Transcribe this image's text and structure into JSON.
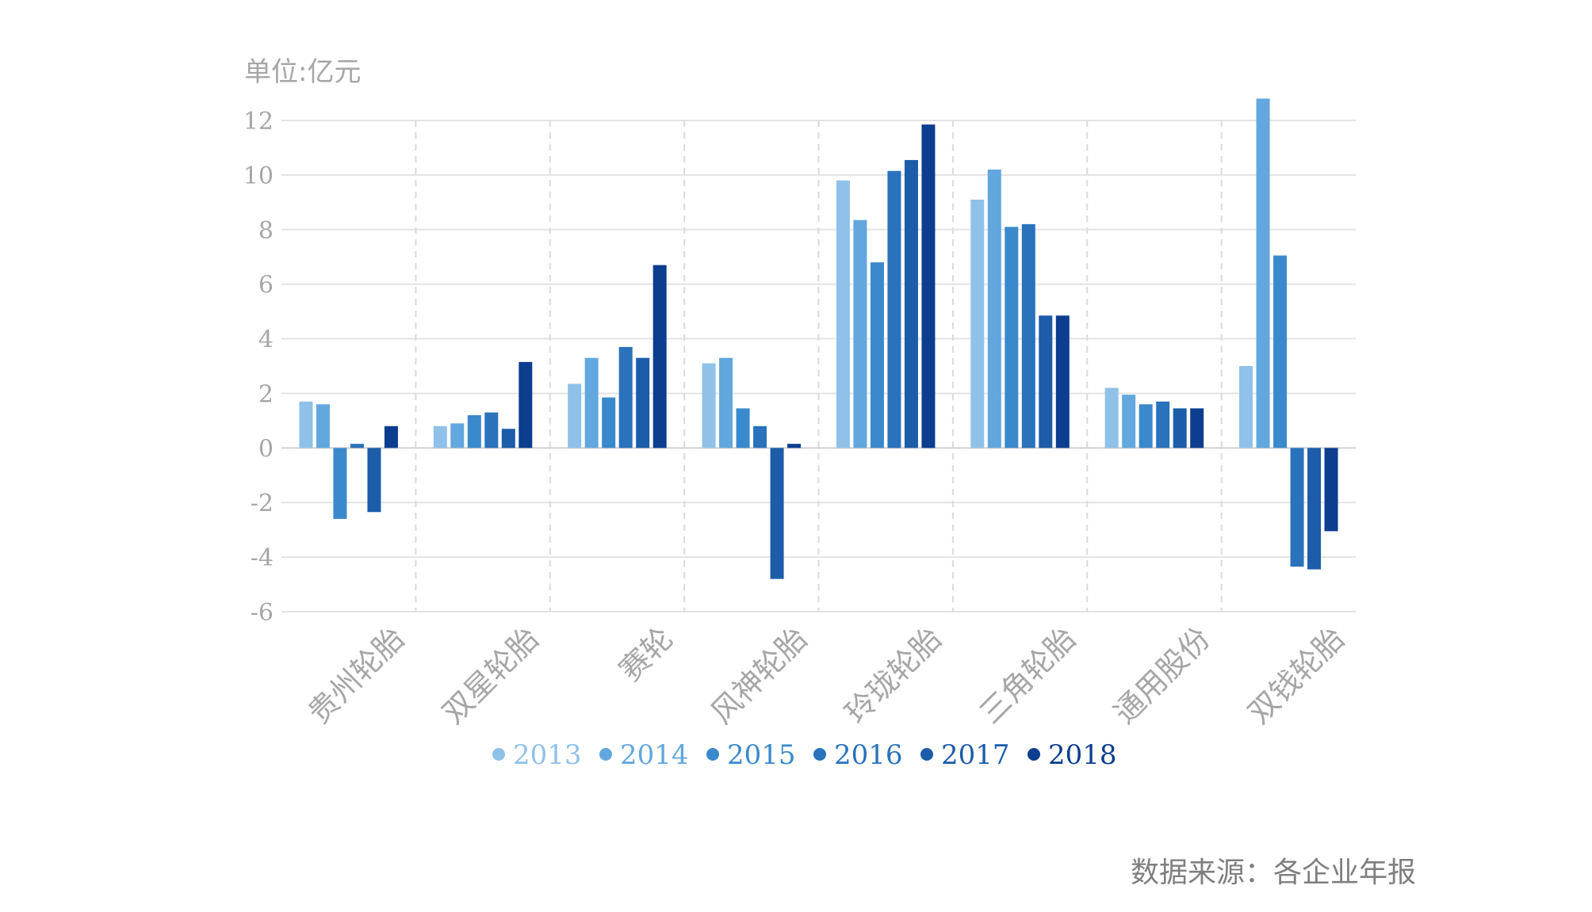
{
  "chart_data": {
    "type": "bar",
    "unit_label": "单位:亿元",
    "categories": [
      "贵州轮胎",
      "双星轮胎",
      "赛轮",
      "风神轮胎",
      "玲珑轮胎",
      "三角轮胎",
      "通用股份",
      "双钱轮胎"
    ],
    "series": [
      {
        "name": "2013",
        "color": "#8fc1e9",
        "values": [
          1.7,
          0.8,
          2.35,
          3.1,
          9.8,
          9.1,
          2.2,
          3.0
        ]
      },
      {
        "name": "2014",
        "color": "#62a7de",
        "values": [
          1.6,
          0.9,
          3.3,
          3.3,
          8.35,
          10.2,
          1.95,
          12.8
        ]
      },
      {
        "name": "2015",
        "color": "#3a89cc",
        "values": [
          -2.6,
          1.2,
          1.85,
          1.45,
          6.8,
          8.1,
          1.6,
          7.05
        ]
      },
      {
        "name": "2016",
        "color": "#2a72bb",
        "values": [
          0.15,
          1.3,
          3.7,
          0.8,
          10.15,
          8.2,
          1.7,
          -4.35
        ]
      },
      {
        "name": "2017",
        "color": "#1c5ca9",
        "values": [
          -2.35,
          0.7,
          3.3,
          -4.8,
          10.55,
          4.85,
          1.45,
          -4.45
        ]
      },
      {
        "name": "2018",
        "color": "#0c3d8f",
        "values": [
          0.8,
          3.15,
          6.7,
          0.15,
          11.85,
          4.85,
          1.45,
          -3.05
        ]
      }
    ],
    "ylim": [
      -6,
      12
    ],
    "yticks": [
      "12",
      "10",
      "8",
      "6",
      "4",
      "2",
      "0",
      "-2",
      "-4",
      "-6"
    ],
    "grid": true,
    "legend_position": "bottom"
  },
  "source_text": "数据来源：各企业年报"
}
